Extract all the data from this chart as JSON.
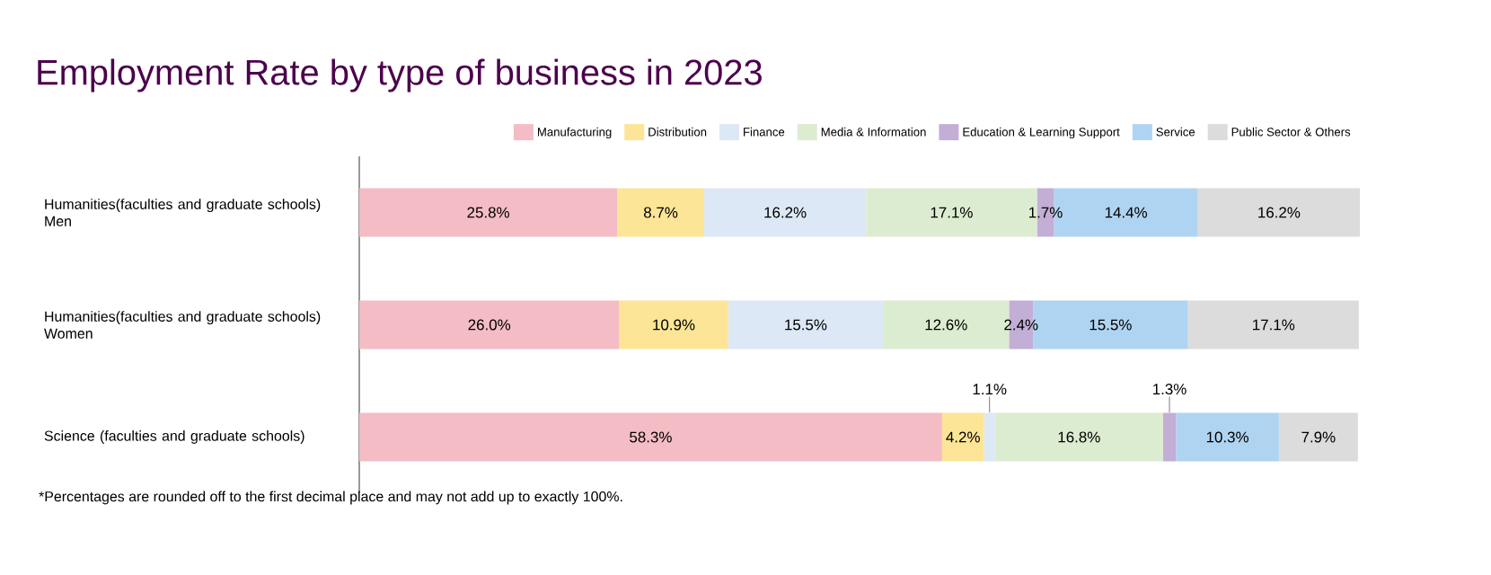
{
  "chart_data": {
    "type": "bar",
    "orientation": "horizontal",
    "stacked": true,
    "title": "Employment Rate by type of business in 2023",
    "categories": [
      "Humanities(faculties and graduate schools) Men",
      "Humanities(faculties and graduate schools) Women",
      "Science (faculties and graduate schools)"
    ],
    "series": [
      {
        "name": "Manufacturing",
        "color": "#f4bcc4",
        "values": [
          25.8,
          26.0,
          58.3
        ],
        "value_labels": [
          "25.8%",
          "26.0%",
          "58.3%"
        ]
      },
      {
        "name": "Distribution",
        "color": "#fce596",
        "values": [
          8.7,
          10.9,
          4.2
        ],
        "value_labels": [
          "8.7%",
          "10.9%",
          "4.2%"
        ]
      },
      {
        "name": "Finance",
        "color": "#dde8f6",
        "values": [
          16.2,
          15.5,
          1.1
        ],
        "value_labels": [
          "16.2%",
          "15.5%",
          "1.1%"
        ]
      },
      {
        "name": "Media & Information",
        "color": "#dcecd0",
        "values": [
          17.1,
          12.6,
          16.8
        ],
        "value_labels": [
          "17.1%",
          "12.6%",
          "16.8%"
        ]
      },
      {
        "name": "Education & Learning Support",
        "color": "#c3aed6",
        "values": [
          1.7,
          2.4,
          1.3
        ],
        "value_labels": [
          "1.7%",
          "2.4%",
          "1.3%"
        ]
      },
      {
        "name": "Service",
        "color": "#afd4f1",
        "values": [
          14.4,
          15.5,
          10.3
        ],
        "value_labels": [
          "14.4%",
          "15.5%",
          "10.3%"
        ]
      },
      {
        "name": "Public Sector & Others",
        "color": "#dcdcdc",
        "values": [
          16.2,
          17.1,
          7.9
        ],
        "value_labels": [
          "16.2%",
          "17.1%",
          "7.9%"
        ]
      }
    ],
    "legend": "top",
    "annotations": [
      "*Percentages are rounded off to the first decimal place and may not add up to exactly 100%."
    ]
  }
}
